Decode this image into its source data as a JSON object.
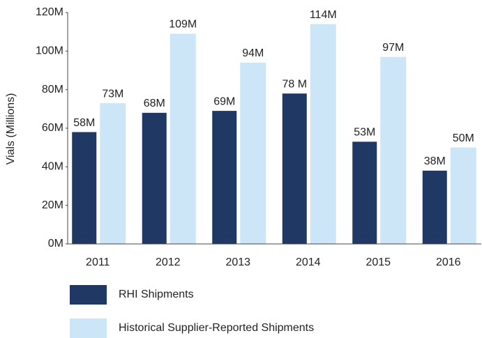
{
  "chart_data": {
    "type": "bar",
    "y_axis_label": "Vials (Millions)",
    "categories": [
      "2011",
      "2012",
      "2013",
      "2014",
      "2015",
      "2016"
    ],
    "series": [
      {
        "name": "RHI Shipments",
        "color": "#1f3864",
        "values": [
          58,
          68,
          69,
          78,
          53,
          38
        ],
        "value_labels": [
          "58M",
          "68M",
          "69M",
          "78 M",
          "53M",
          "38M"
        ]
      },
      {
        "name": "Historical Supplier-Reported Shipments",
        "color": "#cce6f7",
        "values": [
          73,
          109,
          94,
          114,
          97,
          50
        ],
        "value_labels": [
          "73M",
          "109M",
          "94M",
          "114M",
          "97M",
          "50M"
        ]
      }
    ],
    "ylim": [
      0,
      120
    ],
    "yticks": [
      {
        "value": 0,
        "label": "0M"
      },
      {
        "value": 20,
        "label": "20M"
      },
      {
        "value": 40,
        "label": "40M"
      },
      {
        "value": 60,
        "label": "60M"
      },
      {
        "value": 80,
        "label": "80M"
      },
      {
        "value": 100,
        "label": "100M"
      },
      {
        "value": 120,
        "label": "120M"
      }
    ],
    "grid": false,
    "legend": "bottom"
  }
}
